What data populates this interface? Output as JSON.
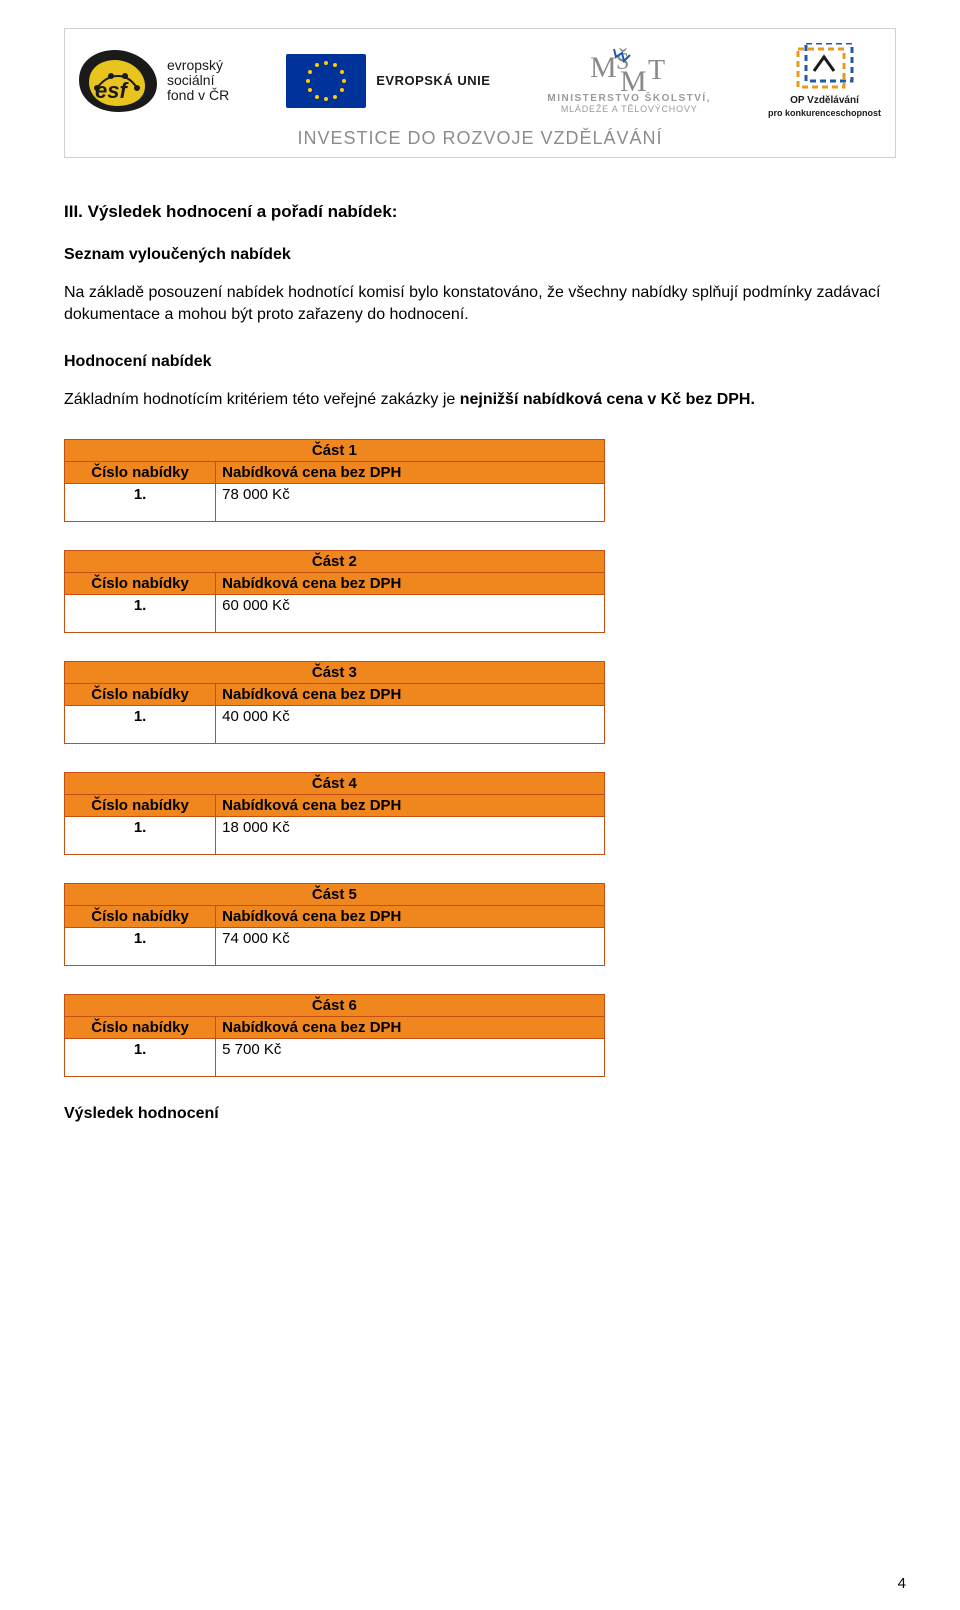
{
  "banner": {
    "esf": {
      "line1": "evropský",
      "line2": "sociální",
      "line3": "fond v ČR"
    },
    "eu": {
      "label": "EVROPSKÁ UNIE"
    },
    "msmt": {
      "line1": "MINISTERSTVO ŠKOLSTVÍ,",
      "line2": "MLÁDEŽE A TĚLOVÝCHOVY"
    },
    "opvk": {
      "line1": "OP Vzdělávání",
      "line2": "pro konkurenceschopnost"
    },
    "subtitle": "INVESTICE DO ROZVOJE VZDĚLÁVÁNÍ"
  },
  "colors": {
    "table_header_bg": "#ef861e",
    "table_border": "#c34f12",
    "eu_blue": "#003399",
    "eu_star": "#ffcc00",
    "banner_grey": "#8c8c8c"
  },
  "section": {
    "title": "III. Výsledek hodnocení a pořadí nabídek:",
    "excluded_heading": "Seznam vyloučených nabídek",
    "excluded_text_1": "Na základě posouzení nabídek hodnotící komisí bylo konstatováno, že všechny nabídky splňují podmínky zadávací dokumentace a mohou být proto zařazeny do hodnocení.",
    "eval_heading": "Hodnocení nabídek",
    "eval_text_prefix": "Základním hodnotícím kritériem této veřejné zakázky je ",
    "eval_text_bold": "nejnižší nabídková cena v Kč bez DPH.",
    "col_number": "Číslo nabídky",
    "col_price": "Nabídková cena bez DPH",
    "result_heading": "Výsledek hodnocení"
  },
  "parts": [
    {
      "title": "Část 1",
      "number": "1.",
      "price": "78 000 Kč"
    },
    {
      "title": "Část 2",
      "number": "1.",
      "price": "60 000 Kč"
    },
    {
      "title": "Část 3",
      "number": "1.",
      "price": "40 000 Kč"
    },
    {
      "title": "Část 4",
      "number": "1.",
      "price": "18 000 Kč"
    },
    {
      "title": "Část 5",
      "number": "1.",
      "price": "74 000 Kč"
    },
    {
      "title": "Část 6",
      "number": "1.",
      "price": "5 700 Kč"
    }
  ],
  "page_number": "4"
}
